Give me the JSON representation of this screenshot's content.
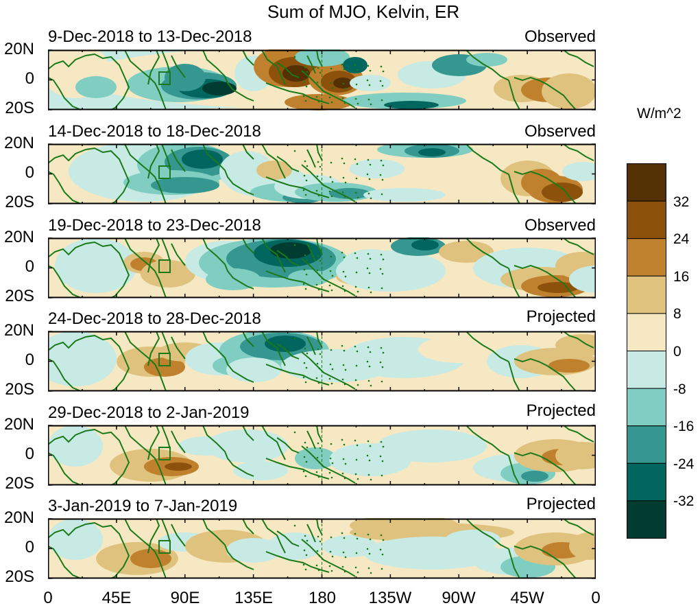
{
  "title": "Sum of MJO, Kelvin, ER",
  "units": "W/m^2",
  "lat_ticks": [
    "20N",
    "0",
    "20S"
  ],
  "lon_ticks": [
    "0",
    "45E",
    "90E",
    "135E",
    "180",
    "135W",
    "90W",
    "45W",
    "0"
  ],
  "colorbar": {
    "colors": [
      "#543005",
      "#8c510a",
      "#bf812d",
      "#dfc27d",
      "#f6e8c3",
      "#c7eae5",
      "#80cdc1",
      "#35978f",
      "#01665e",
      "#003c30"
    ],
    "labels": [
      "32",
      "24",
      "16",
      "8",
      "0",
      "-8",
      "-16",
      "-24",
      "-32"
    ]
  },
  "panels": [
    {
      "range": "9-Dec-2018 to 13-Dec-2018",
      "status": "Observed"
    },
    {
      "range": "14-Dec-2018 to 18-Dec-2018",
      "status": "Observed"
    },
    {
      "range": "19-Dec-2018 to 23-Dec-2018",
      "status": "Observed"
    },
    {
      "range": "24-Dec-2018 to 28-Dec-2018",
      "status": "Projected"
    },
    {
      "range": "29-Dec-2018 to 2-Jan-2019",
      "status": "Projected"
    },
    {
      "range": "3-Jan-2019 to 7-Jan-2019",
      "status": "Projected"
    }
  ]
}
